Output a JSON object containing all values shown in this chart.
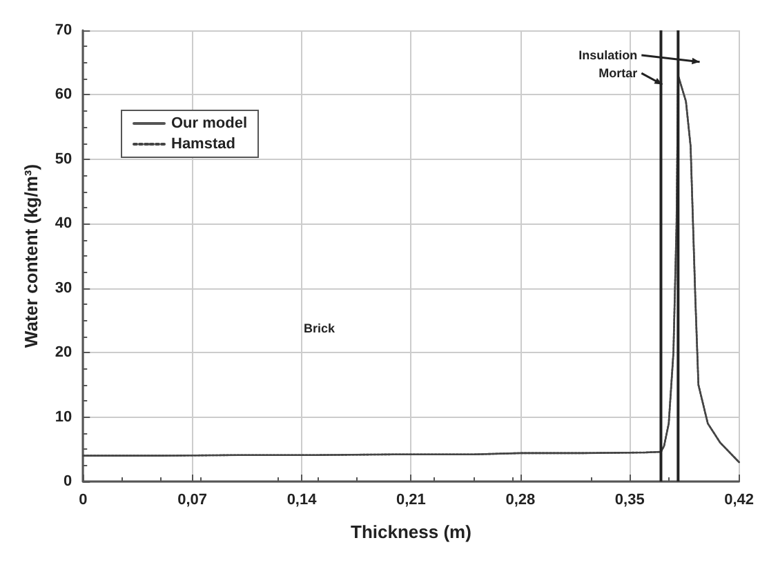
{
  "chart_data": {
    "type": "line",
    "xlabel": "Thickness (m)",
    "ylabel": "Water content (kg/m³)",
    "xlim": [
      0,
      0.42
    ],
    "ylim": [
      0,
      70
    ],
    "xticks": [
      0,
      {
        "value": 0.07,
        "label": "0,07"
      },
      {
        "value": 0.14,
        "label": "0,14"
      },
      {
        "value": 0.21,
        "label": "0,21"
      },
      {
        "value": 0.28,
        "label": "0,28"
      },
      {
        "value": 0.35,
        "label": "0,35"
      },
      {
        "value": 0.42,
        "label": "0,42"
      }
    ],
    "yticks": [
      0,
      10,
      20,
      30,
      40,
      50,
      60,
      70
    ],
    "x": [
      0,
      0.05,
      0.1,
      0.15,
      0.2,
      0.25,
      0.28,
      0.32,
      0.36,
      0.37,
      0.372,
      0.375,
      0.378,
      0.38,
      0.381,
      0.386,
      0.389,
      0.392,
      0.394,
      0.4,
      0.408,
      0.42
    ],
    "series": [
      {
        "name": "Our model",
        "color": "#555555",
        "line_style": "solid",
        "values": [
          4,
          4,
          4.1,
          4.1,
          4.2,
          4.2,
          4.4,
          4.4,
          4.5,
          4.6,
          5.5,
          9,
          20,
          40,
          63,
          59,
          52,
          28.6,
          15,
          9,
          6,
          3
        ]
      },
      {
        "name": "Hamstad",
        "color": "#444444",
        "line_style": "dotted",
        "values": [
          4,
          4,
          4.1,
          4.1,
          4.2,
          4.2,
          4.4,
          4.4,
          4.5,
          4.6,
          5.5,
          9,
          20,
          40,
          63,
          59,
          52,
          28.6,
          15,
          9,
          6,
          3
        ]
      }
    ],
    "ref_lines": [
      {
        "axis": "x",
        "value": 0.37,
        "color": "#222222"
      },
      {
        "axis": "x",
        "value": 0.381,
        "color": "#222222"
      }
    ],
    "annotations": [
      "Insulation",
      "Mortar",
      "Brick"
    ],
    "grid": true,
    "legend": "top left",
    "marker": "none"
  }
}
